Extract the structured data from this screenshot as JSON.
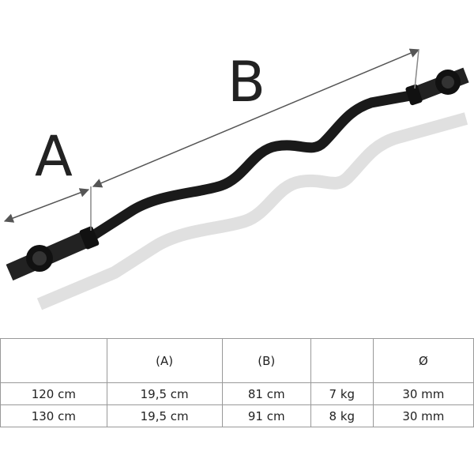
{
  "labels": {
    "a": "A",
    "b": "B"
  },
  "table": {
    "header": [
      null,
      "(A)",
      "(B)",
      null,
      "Ø"
    ],
    "rows": [
      [
        "120 cm",
        "19,5 cm",
        "81 cm",
        "7 kg",
        "30 mm"
      ],
      [
        "130 cm",
        "19,5 cm",
        "91 cm",
        "8 kg",
        "30 mm"
      ]
    ]
  }
}
